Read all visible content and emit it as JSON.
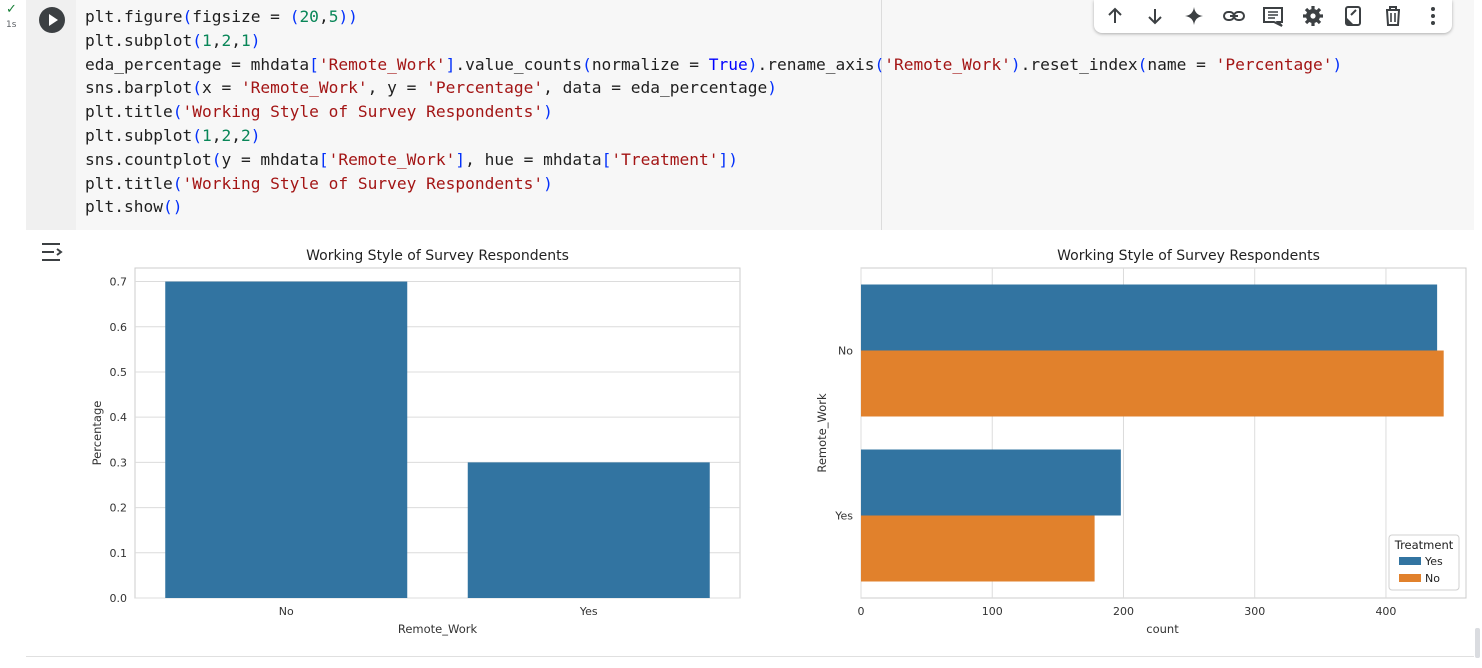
{
  "cell": {
    "status_check": "✓",
    "exec_time": "1s",
    "code_lines": [
      [
        [
          "plt.figure",
          ""
        ],
        [
          "(",
          "par"
        ],
        [
          "figsize = ",
          ""
        ],
        [
          "(",
          "par"
        ],
        [
          "20",
          "num"
        ],
        [
          ",",
          ""
        ],
        [
          "5",
          "num"
        ],
        [
          "))",
          "par"
        ]
      ],
      [
        [
          "plt.subplot",
          ""
        ],
        [
          "(",
          "par"
        ],
        [
          "1",
          "num"
        ],
        [
          ",",
          ""
        ],
        [
          "2",
          "num"
        ],
        [
          ",",
          ""
        ],
        [
          "1",
          "num"
        ],
        [
          ")",
          "par"
        ]
      ],
      [
        [
          "eda_percentage = mhdata",
          ""
        ],
        [
          "[",
          "par"
        ],
        [
          "'Remote_Work'",
          "str"
        ],
        [
          "]",
          "par"
        ],
        [
          ".value_counts",
          ""
        ],
        [
          "(",
          "par"
        ],
        [
          "normalize = ",
          ""
        ],
        [
          "True",
          "kw"
        ],
        [
          ")",
          "par"
        ],
        [
          ".rename_axis",
          ""
        ],
        [
          "(",
          "par"
        ],
        [
          "'Remote_Work'",
          "str"
        ],
        [
          ")",
          "par"
        ],
        [
          ".reset_index",
          ""
        ],
        [
          "(",
          "par"
        ],
        [
          "name = ",
          ""
        ],
        [
          "'Percentage'",
          "str"
        ],
        [
          ")",
          "par"
        ]
      ],
      [
        [
          "sns.barplot",
          ""
        ],
        [
          "(",
          "par"
        ],
        [
          "x = ",
          ""
        ],
        [
          "'Remote_Work'",
          "str"
        ],
        [
          ", y = ",
          ""
        ],
        [
          "'Percentage'",
          "str"
        ],
        [
          ", data = eda_percentage",
          ""
        ],
        [
          ")",
          "par"
        ]
      ],
      [
        [
          "plt.title",
          ""
        ],
        [
          "(",
          "par"
        ],
        [
          "'Working Style of Survey Respondents'",
          "str"
        ],
        [
          ")",
          "par"
        ]
      ],
      [
        [
          "plt.subplot",
          ""
        ],
        [
          "(",
          "par"
        ],
        [
          "1",
          "num"
        ],
        [
          ",",
          ""
        ],
        [
          "2",
          "num"
        ],
        [
          ",",
          ""
        ],
        [
          "2",
          "num"
        ],
        [
          ")",
          "par"
        ]
      ],
      [
        [
          "sns.countplot",
          ""
        ],
        [
          "(",
          "par"
        ],
        [
          "y = mhdata",
          ""
        ],
        [
          "[",
          "par"
        ],
        [
          "'Remote_Work'",
          "str"
        ],
        [
          "]",
          "par"
        ],
        [
          ", hue = mhdata",
          ""
        ],
        [
          "[",
          "par"
        ],
        [
          "'Treatment'",
          "str"
        ],
        [
          "])",
          "par"
        ]
      ],
      [
        [
          "plt.title",
          ""
        ],
        [
          "(",
          "par"
        ],
        [
          "'Working Style of Survey Respondents'",
          "str"
        ],
        [
          ")",
          "par"
        ]
      ],
      [
        [
          "plt.show",
          ""
        ],
        [
          "()",
          "par"
        ]
      ]
    ]
  },
  "toolbar": {
    "buttons": [
      "move-up-icon",
      "move-down-icon",
      "sparkle-icon",
      "link-icon",
      "comment-icon",
      "gear-icon",
      "mirror-cell-icon",
      "delete-icon",
      "more-vert-icon"
    ]
  },
  "colors": {
    "blue": "#3274a1",
    "orange": "#e1812c",
    "grid": "#dcdcdc",
    "axis_frame": "#cccccc"
  },
  "chart_data": [
    {
      "type": "bar",
      "title": "Working Style of Survey Respondents",
      "xlabel": "Remote_Work",
      "ylabel": "Percentage",
      "categories": [
        "No",
        "Yes"
      ],
      "values": [
        0.7,
        0.3
      ],
      "ylim": [
        0,
        0.73
      ],
      "yticks": [
        0.0,
        0.1,
        0.2,
        0.3,
        0.4,
        0.5,
        0.6,
        0.7
      ],
      "ytick_labels": [
        "0.0",
        "0.1",
        "0.2",
        "0.3",
        "0.4",
        "0.5",
        "0.6",
        "0.7"
      ],
      "grid": true,
      "color": "#3274a1"
    },
    {
      "type": "bar",
      "orientation": "horizontal",
      "title": "Working Style of Survey Respondents",
      "xlabel": "count",
      "ylabel": "Remote_Work",
      "categories": [
        "No",
        "Yes"
      ],
      "series": [
        {
          "name": "Yes",
          "values": [
            439,
            198
          ],
          "color": "#3274a1"
        },
        {
          "name": "No",
          "values": [
            444,
            178
          ],
          "color": "#e1812c"
        }
      ],
      "xlim": [
        0,
        461
      ],
      "xticks": [
        0,
        100,
        200,
        300,
        400
      ],
      "xtick_labels": [
        "0",
        "100",
        "200",
        "300",
        "400"
      ],
      "legend_title": "Treatment",
      "legend_position": "lower right",
      "grid": true
    }
  ]
}
